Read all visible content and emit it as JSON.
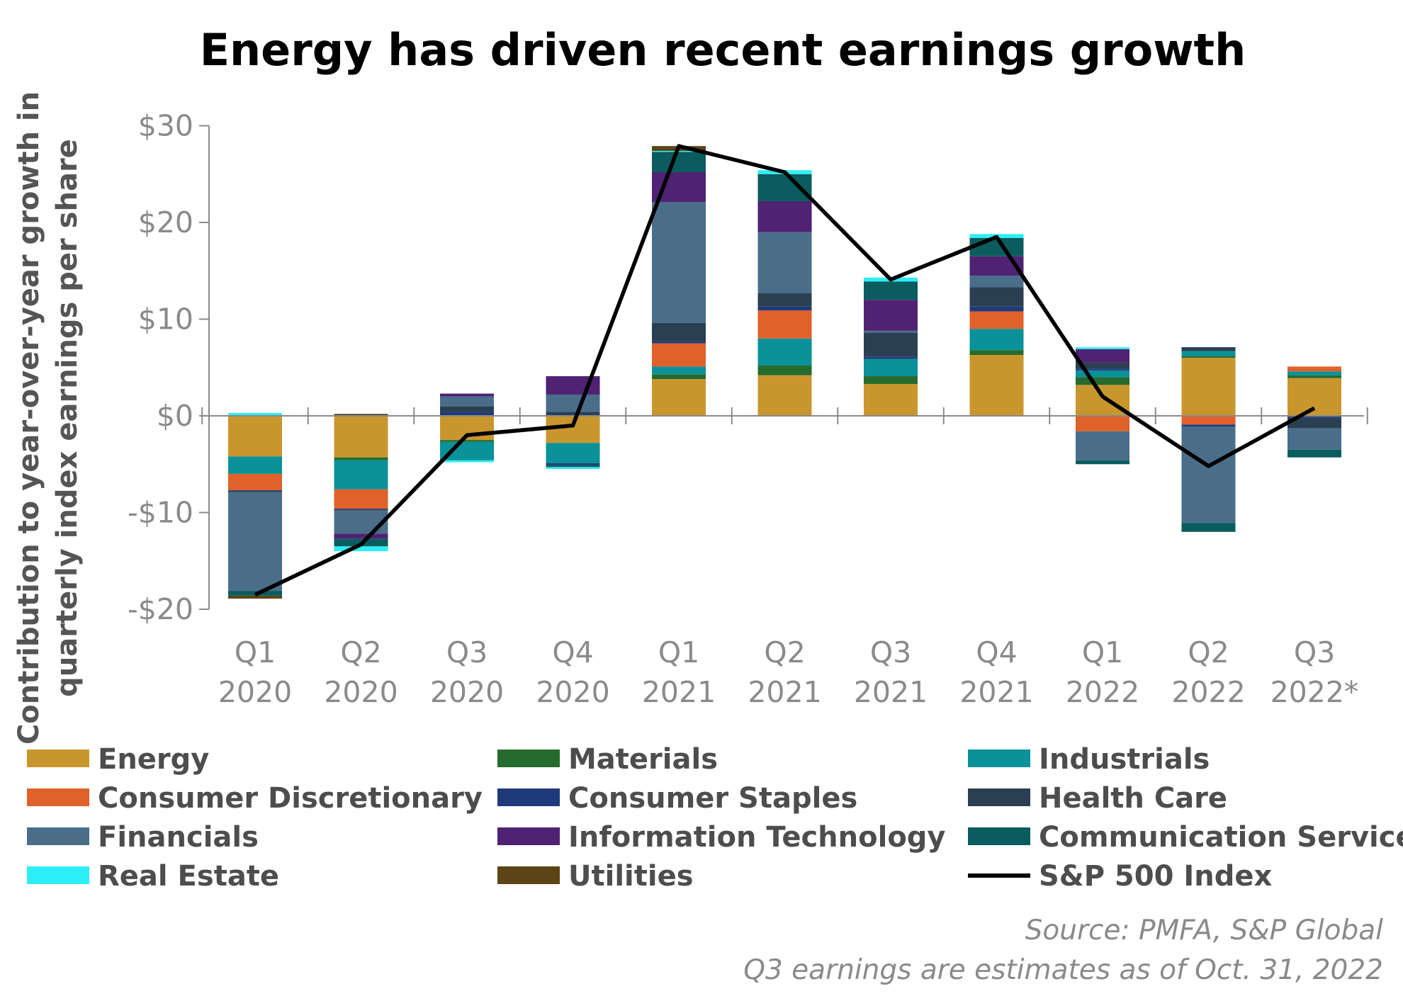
{
  "chart_data": {
    "type": "bar",
    "stacked": true,
    "title": "Energy has driven recent earnings growth",
    "ylabel_lines": [
      "Contribution to year-over-year growth in",
      "quarterly index earnings per share"
    ],
    "xlabel": "",
    "ylim": [
      -20,
      30
    ],
    "yticks": [
      30,
      20,
      10,
      0,
      -10,
      -20
    ],
    "ytick_labels": [
      "$30",
      "$20",
      "$10",
      "$0",
      "-$10",
      "-$20"
    ],
    "categories": [
      [
        "Q1",
        "2020"
      ],
      [
        "Q2",
        "2020"
      ],
      [
        "Q3",
        "2020"
      ],
      [
        "Q4",
        "2020"
      ],
      [
        "Q1",
        "2021"
      ],
      [
        "Q2",
        "2021"
      ],
      [
        "Q3",
        "2021"
      ],
      [
        "Q4",
        "2021"
      ],
      [
        "Q1",
        "2022"
      ],
      [
        "Q2",
        "2022"
      ],
      [
        "Q3",
        "2022*"
      ]
    ],
    "series": [
      {
        "name": "Energy",
        "color": "#C9962E",
        "values": [
          -4.2,
          -4.3,
          -2.5,
          -2.8,
          3.8,
          4.2,
          3.3,
          6.3,
          3.2,
          6.0,
          3.9
        ]
      },
      {
        "name": "Materials",
        "color": "#256B2D",
        "values": [
          0.0,
          -0.3,
          -0.2,
          0.0,
          0.5,
          1.0,
          0.8,
          0.5,
          0.8,
          0.2,
          0.3
        ]
      },
      {
        "name": "Industrials",
        "color": "#0A9199",
        "values": [
          -1.8,
          -3.0,
          -1.9,
          -2.1,
          0.8,
          2.8,
          1.8,
          2.2,
          0.7,
          0.5,
          0.4
        ]
      },
      {
        "name": "Consumer Discretionary",
        "color": "#E0612A",
        "values": [
          -1.7,
          -2.0,
          0.0,
          0.0,
          2.4,
          2.9,
          0.0,
          1.8,
          -1.6,
          -0.9,
          0.5
        ]
      },
      {
        "name": "Consumer Staples",
        "color": "#1F3A7A",
        "values": [
          -0.1,
          -0.1,
          0.4,
          -0.2,
          0.2,
          0.4,
          0.2,
          0.5,
          0.2,
          -0.2,
          -0.2
        ]
      },
      {
        "name": "Health Care",
        "color": "#2B3F52",
        "values": [
          -0.1,
          -0.1,
          0.6,
          0.4,
          1.9,
          1.4,
          2.5,
          2.0,
          0.6,
          0.4,
          -1.1
        ]
      },
      {
        "name": "Financials",
        "color": "#4A6E8A",
        "values": [
          -10.2,
          -2.4,
          1.0,
          1.8,
          12.5,
          6.3,
          0.2,
          1.2,
          -3.0,
          -10.0,
          -2.2
        ]
      },
      {
        "name": "Information Technology",
        "color": "#4F2273",
        "values": [
          0.0,
          -0.5,
          0.3,
          1.9,
          3.1,
          3.2,
          3.2,
          2.0,
          1.4,
          0.0,
          0.0
        ]
      },
      {
        "name": "Communication Services",
        "color": "#0B5C5E",
        "values": [
          -0.5,
          -0.8,
          0.0,
          -0.2,
          2.1,
          2.8,
          1.9,
          1.9,
          -0.4,
          -0.9,
          -0.8
        ]
      },
      {
        "name": "Real Estate",
        "color": "#2EEEF5",
        "values": [
          0.3,
          -0.5,
          -0.2,
          -0.2,
          0.1,
          0.4,
          0.4,
          0.4,
          0.2,
          0.0,
          0.0
        ]
      },
      {
        "name": "Utilities",
        "color": "#5C4417",
        "values": [
          -0.3,
          0.2,
          0.0,
          0.0,
          0.5,
          0.0,
          0.0,
          0.0,
          0.0,
          0.0,
          0.0
        ]
      }
    ],
    "line": {
      "name": "S&P 500 Index",
      "color": "#000000",
      "values": [
        -18.5,
        -13.3,
        -2.0,
        -1.0,
        27.9,
        25.2,
        14.1,
        18.5,
        2.0,
        -5.2,
        0.8
      ]
    },
    "legend_placement": "bottom",
    "grid": false
  },
  "notes": {
    "source": "Source: PMFA, S&P Global",
    "estimate": "Q3 earnings are estimates as of Oct. 31, 2022"
  }
}
